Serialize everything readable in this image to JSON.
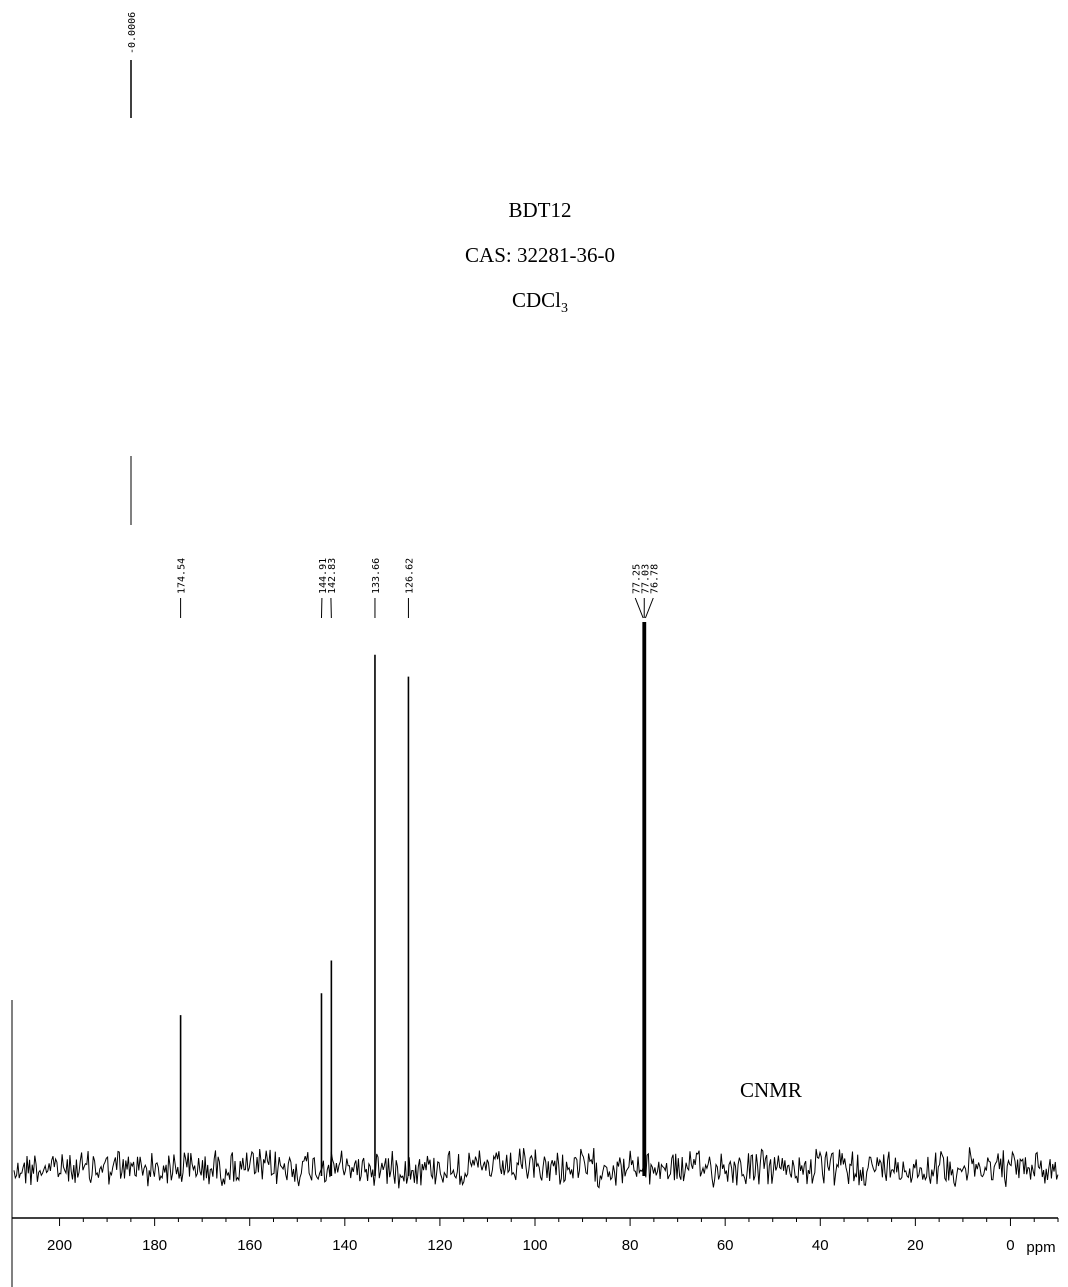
{
  "chart_data": {
    "type": "line",
    "title_lines": [
      "BDT12",
      "CAS: 32281-36-0",
      "CDCl",
      "3"
    ],
    "annotation": "CNMR",
    "xlabel": "ppm",
    "xlim": [
      210,
      -10
    ],
    "x_ticks": [
      200,
      180,
      160,
      140,
      120,
      100,
      80,
      60,
      40,
      20,
      0
    ],
    "x_tick_labels": [
      "200",
      "180",
      "160",
      "140",
      "120",
      "100",
      "80",
      "60",
      "40",
      "20",
      "0"
    ],
    "top_reference_label": "-0.0006",
    "peaks": [
      {
        "ppm": 174.54,
        "label": "174.54",
        "intensity": 0.28
      },
      {
        "ppm": 144.91,
        "label": "144.91",
        "intensity": 0.32
      },
      {
        "ppm": 142.83,
        "label": "142.83",
        "intensity": 0.38
      },
      {
        "ppm": 133.66,
        "label": "133.66",
        "intensity": 0.94
      },
      {
        "ppm": 126.62,
        "label": "126.62",
        "intensity": 0.9
      },
      {
        "ppm": 77.25,
        "label": "77.25",
        "intensity": 1.0
      },
      {
        "ppm": 77.03,
        "label": "77.03",
        "intensity": 1.0
      },
      {
        "ppm": 76.78,
        "label": "76.78",
        "intensity": 1.0
      }
    ],
    "grid": false
  }
}
